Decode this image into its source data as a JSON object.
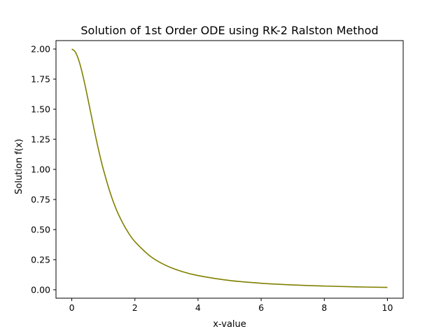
{
  "chart_data": {
    "type": "line",
    "title": "Solution of 1st Order ODE using RK-2 Ralston Method",
    "xlabel": "x-value",
    "ylabel": "Solution f(x)",
    "xlim": [
      -0.5,
      10.5
    ],
    "ylim": [
      -0.07,
      2.07
    ],
    "xticks": [
      0,
      2,
      4,
      6,
      8,
      10
    ],
    "yticks": [
      0.0,
      0.25,
      0.5,
      0.75,
      1.0,
      1.25,
      1.5,
      1.75,
      2.0
    ],
    "xtick_labels": [
      "0",
      "2",
      "4",
      "6",
      "8",
      "10"
    ],
    "ytick_labels": [
      "0.00",
      "0.25",
      "0.50",
      "0.75",
      "1.00",
      "1.25",
      "1.50",
      "1.75",
      "2.00"
    ],
    "grid": false,
    "series": [
      {
        "color": "#808000",
        "x": [
          0,
          0.1,
          0.2,
          0.3,
          0.4,
          0.5,
          0.6,
          0.7,
          0.8,
          0.9,
          1.0,
          1.2,
          1.4,
          1.6,
          1.8,
          2.0,
          2.5,
          3.0,
          3.5,
          4.0,
          5.0,
          6.0,
          7.0,
          8.0,
          9.0,
          10.0
        ],
        "y": [
          2.0,
          1.98,
          1.923,
          1.835,
          1.724,
          1.6,
          1.471,
          1.342,
          1.219,
          1.104,
          1.0,
          0.82,
          0.674,
          0.562,
          0.471,
          0.4,
          0.276,
          0.2,
          0.151,
          0.118,
          0.077,
          0.054,
          0.04,
          0.031,
          0.024,
          0.02
        ]
      }
    ]
  }
}
